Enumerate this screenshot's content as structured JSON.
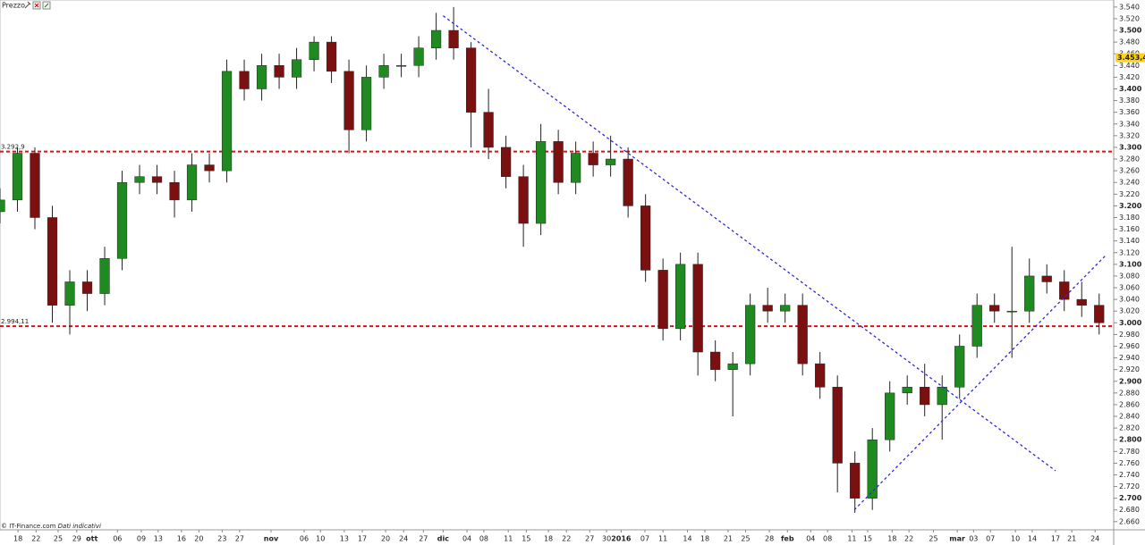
{
  "chart_data": {
    "type": "candlestick",
    "title": "Prezzo",
    "footer": "© IT-Finance.com",
    "footer_note": "Dati indicativi",
    "x": [
      0,
      3,
      6,
      9,
      12,
      15,
      18,
      21,
      24,
      27,
      30,
      33,
      36,
      39,
      42,
      45,
      48,
      51,
      54,
      57,
      60,
      63,
      66,
      69,
      72,
      75,
      78,
      81,
      84,
      87,
      90,
      93,
      96,
      99,
      102,
      105,
      108,
      111,
      114,
      117,
      120,
      123,
      126,
      129,
      132,
      135,
      138,
      141,
      144,
      147,
      150,
      153,
      156,
      159,
      162,
      165,
      168,
      171,
      174,
      177,
      180,
      183,
      186,
      189
    ],
    "open": [
      3.19,
      3.21,
      3.29,
      3.18,
      3.03,
      3.07,
      3.05,
      3.11,
      3.24,
      3.25,
      3.24,
      3.21,
      3.27,
      3.26,
      3.43,
      3.4,
      3.44,
      3.42,
      3.45,
      3.48,
      3.43,
      3.33,
      3.42,
      3.44,
      3.44,
      3.47,
      3.5,
      3.47,
      3.36,
      3.3,
      3.25,
      3.17,
      3.31,
      3.24,
      3.29,
      3.27,
      3.28,
      3.2,
      3.09,
      2.99,
      3.1,
      2.95,
      2.92,
      2.93,
      3.03,
      3.02,
      3.03,
      2.93,
      2.89,
      2.76,
      2.7,
      2.8,
      2.88,
      2.89,
      2.86,
      2.89,
      2.96,
      3.03,
      3.02,
      3.02,
      3.08,
      3.07,
      3.04,
      3.03
    ],
    "high": [
      3.23,
      3.3,
      3.3,
      3.2,
      3.09,
      3.09,
      3.13,
      3.26,
      3.27,
      3.27,
      3.26,
      3.29,
      3.29,
      3.45,
      3.45,
      3.46,
      3.46,
      3.47,
      3.49,
      3.49,
      3.45,
      3.44,
      3.46,
      3.46,
      3.49,
      3.53,
      3.54,
      3.48,
      3.4,
      3.32,
      3.27,
      3.34,
      3.33,
      3.31,
      3.31,
      3.32,
      3.3,
      3.22,
      3.11,
      3.12,
      3.12,
      2.97,
      2.95,
      3.05,
      3.06,
      3.05,
      3.05,
      2.95,
      2.91,
      2.78,
      2.82,
      2.9,
      2.91,
      2.93,
      2.91,
      2.98,
      3.05,
      3.05,
      3.13,
      3.11,
      3.1,
      3.09,
      3.07,
      3.05
    ],
    "low": [
      3.17,
      3.19,
      3.16,
      3.0,
      2.98,
      3.02,
      3.03,
      3.09,
      3.22,
      3.22,
      3.18,
      3.19,
      3.24,
      3.24,
      3.38,
      3.38,
      3.4,
      3.4,
      3.43,
      3.41,
      3.29,
      3.31,
      3.4,
      3.42,
      3.42,
      3.45,
      3.45,
      3.3,
      3.28,
      3.23,
      3.13,
      3.15,
      3.22,
      3.22,
      3.25,
      3.25,
      3.18,
      3.07,
      2.97,
      2.97,
      2.91,
      2.9,
      2.84,
      2.91,
      3.0,
      3.0,
      2.91,
      2.87,
      2.71,
      2.675,
      2.68,
      2.78,
      2.86,
      2.84,
      2.8,
      2.87,
      2.94,
      3.0,
      2.94,
      3.0,
      3.05,
      3.02,
      3.01,
      2.98
    ],
    "close": [
      3.21,
      3.29,
      3.18,
      3.03,
      3.07,
      3.05,
      3.11,
      3.24,
      3.25,
      3.24,
      3.21,
      3.27,
      3.26,
      3.43,
      3.4,
      3.44,
      3.42,
      3.45,
      3.48,
      3.43,
      3.33,
      3.42,
      3.44,
      3.44,
      3.47,
      3.5,
      3.47,
      3.36,
      3.3,
      3.25,
      3.17,
      3.31,
      3.24,
      3.29,
      3.27,
      3.28,
      3.2,
      3.09,
      2.99,
      3.1,
      2.95,
      2.92,
      2.93,
      3.03,
      3.02,
      3.03,
      2.93,
      2.89,
      2.76,
      2.7,
      2.8,
      2.88,
      2.89,
      2.86,
      2.89,
      2.96,
      3.03,
      3.02,
      3.02,
      3.08,
      3.07,
      3.04,
      3.03,
      3.0
    ],
    "up_color": "#1f8a1f",
    "down_color": "#7a1010",
    "xlim": [
      0,
      191.5
    ],
    "ylim": [
      2.646,
      3.552
    ],
    "xticks": [
      {
        "value": 3.1,
        "label": "18"
      },
      {
        "value": 6.2,
        "label": "22"
      },
      {
        "value": 10,
        "label": "25"
      },
      {
        "value": 13.2,
        "label": "29"
      },
      {
        "value": 15.8,
        "label": "ott"
      },
      {
        "value": 20.2,
        "label": "06"
      },
      {
        "value": 24.3,
        "label": "09"
      },
      {
        "value": 27.2,
        "label": "13"
      },
      {
        "value": 31.2,
        "label": "16"
      },
      {
        "value": 34.2,
        "label": "20"
      },
      {
        "value": 38.2,
        "label": "23"
      },
      {
        "value": 41.2,
        "label": "27"
      },
      {
        "value": 46.6,
        "label": "nov"
      },
      {
        "value": 52.3,
        "label": "06"
      },
      {
        "value": 55.1,
        "label": "10"
      },
      {
        "value": 59.2,
        "label": "13"
      },
      {
        "value": 62.3,
        "label": "17"
      },
      {
        "value": 66.3,
        "label": "20"
      },
      {
        "value": 69.4,
        "label": "24"
      },
      {
        "value": 72.8,
        "label": "27"
      },
      {
        "value": 76.2,
        "label": "dic"
      },
      {
        "value": 80.3,
        "label": "04"
      },
      {
        "value": 83.2,
        "label": "08"
      },
      {
        "value": 87.4,
        "label": "11"
      },
      {
        "value": 90.5,
        "label": "15"
      },
      {
        "value": 94.3,
        "label": "18"
      },
      {
        "value": 97.4,
        "label": "22"
      },
      {
        "value": 101.4,
        "label": "27"
      },
      {
        "value": 104.3,
        "label": "30"
      },
      {
        "value": 106.8,
        "label": "2016"
      },
      {
        "value": 110.9,
        "label": "07"
      },
      {
        "value": 114,
        "label": "11"
      },
      {
        "value": 118.2,
        "label": "14"
      },
      {
        "value": 121.2,
        "label": "18"
      },
      {
        "value": 125.2,
        "label": "21"
      },
      {
        "value": 128.2,
        "label": "25"
      },
      {
        "value": 132.3,
        "label": "28"
      },
      {
        "value": 135.4,
        "label": "feb"
      },
      {
        "value": 139.4,
        "label": "04"
      },
      {
        "value": 142.3,
        "label": "08"
      },
      {
        "value": 146.5,
        "label": "11"
      },
      {
        "value": 149.2,
        "label": "15"
      },
      {
        "value": 153.4,
        "label": "18"
      },
      {
        "value": 156.3,
        "label": "22"
      },
      {
        "value": 160.5,
        "label": "25"
      },
      {
        "value": 164.6,
        "label": "mar"
      },
      {
        "value": 167.4,
        "label": "03"
      },
      {
        "value": 170.3,
        "label": "07"
      },
      {
        "value": 174.6,
        "label": "10"
      },
      {
        "value": 177.5,
        "label": "14"
      },
      {
        "value": 181.5,
        "label": "17"
      },
      {
        "value": 184.3,
        "label": "21"
      },
      {
        "value": 188.3,
        "label": "24"
      }
    ],
    "yticks": [
      {
        "value": 2.66,
        "label": "2.660"
      },
      {
        "value": 2.68,
        "label": "2.680"
      },
      {
        "value": 2.7,
        "label": "2.700"
      },
      {
        "value": 2.72,
        "label": "2.720"
      },
      {
        "value": 2.74,
        "label": "2.740"
      },
      {
        "value": 2.76,
        "label": "2.760"
      },
      {
        "value": 2.78,
        "label": "2.780"
      },
      {
        "value": 2.8,
        "label": "2.800"
      },
      {
        "value": 2.82,
        "label": "2.820"
      },
      {
        "value": 2.84,
        "label": "2.840"
      },
      {
        "value": 2.86,
        "label": "2.860"
      },
      {
        "value": 2.88,
        "label": "2.880"
      },
      {
        "value": 2.9,
        "label": "2.900"
      },
      {
        "value": 2.92,
        "label": "2.920"
      },
      {
        "value": 2.94,
        "label": "2.940"
      },
      {
        "value": 2.96,
        "label": "2.960"
      },
      {
        "value": 2.98,
        "label": "2.980"
      },
      {
        "value": 3.0,
        "label": "3.000"
      },
      {
        "value": 3.02,
        "label": "3.020"
      },
      {
        "value": 3.04,
        "label": "3.040"
      },
      {
        "value": 3.06,
        "label": "3.060"
      },
      {
        "value": 3.08,
        "label": "3.080"
      },
      {
        "value": 3.1,
        "label": "3.100"
      },
      {
        "value": 3.12,
        "label": "3.120"
      },
      {
        "value": 3.14,
        "label": "3.140"
      },
      {
        "value": 3.16,
        "label": "3.160"
      },
      {
        "value": 3.18,
        "label": "3.180"
      },
      {
        "value": 3.2,
        "label": "3.200"
      },
      {
        "value": 3.22,
        "label": "3.220"
      },
      {
        "value": 3.24,
        "label": "3.240"
      },
      {
        "value": 3.26,
        "label": "3.260"
      },
      {
        "value": 3.28,
        "label": "3.280"
      },
      {
        "value": 3.3,
        "label": "3.300"
      },
      {
        "value": 3.32,
        "label": "3.320"
      },
      {
        "value": 3.34,
        "label": "3.340"
      },
      {
        "value": 3.36,
        "label": "3.360"
      },
      {
        "value": 3.38,
        "label": "3.380"
      },
      {
        "value": 3.4,
        "label": "3.400"
      },
      {
        "value": 3.42,
        "label": "3.420"
      },
      {
        "value": 3.44,
        "label": "3.440"
      },
      {
        "value": 3.46,
        "label": "3.460"
      },
      {
        "value": 3.48,
        "label": "3.480"
      },
      {
        "value": 3.5,
        "label": "3.500"
      },
      {
        "value": 3.52,
        "label": "3.520"
      },
      {
        "value": 3.54,
        "label": "3.540"
      }
    ],
    "hlines": [
      {
        "value": 3.2929,
        "label": "3.292,9",
        "color": "#e01010"
      },
      {
        "value": 2.99411,
        "label": "2.994,11",
        "color": "#e01010"
      }
    ],
    "trendlines": [
      {
        "x": [
          76.2,
          181.5
        ],
        "y": [
          3.525,
          2.747
        ],
        "color": "#2a2ae0"
      },
      {
        "x": [
          146.9,
          190
        ],
        "y": [
          2.68,
          3.114
        ],
        "color": "#2a2ae0"
      }
    ],
    "last_price": {
      "value": 3.4534,
      "label": "3.453,4",
      "color": "#ffd21f"
    }
  }
}
